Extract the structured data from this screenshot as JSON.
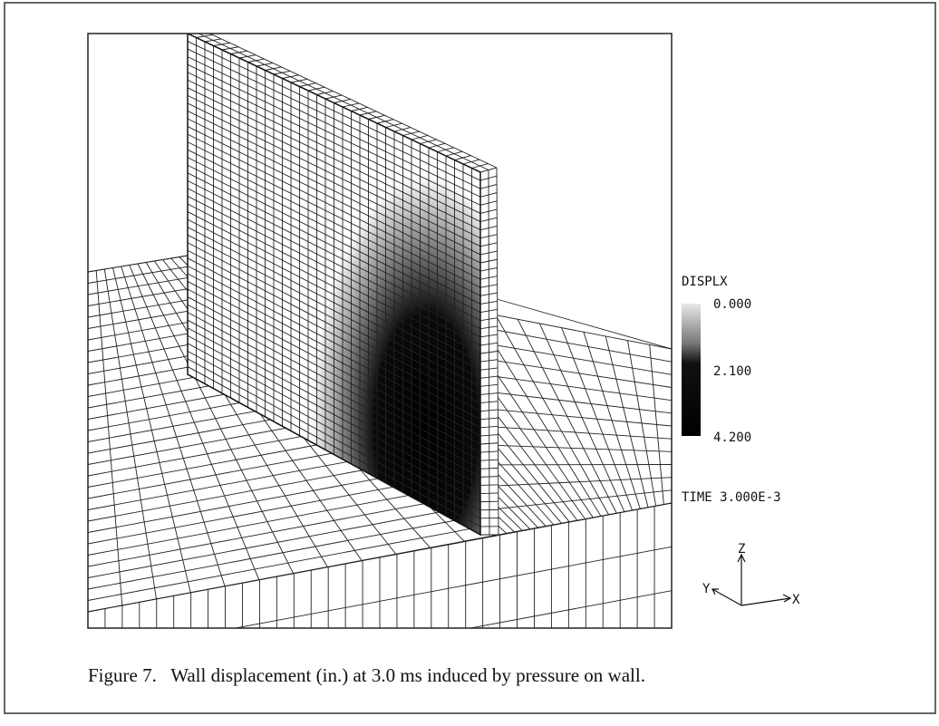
{
  "legend": {
    "title": "DISPLX",
    "ticks": [
      "0.000",
      "2.100",
      "4.200"
    ]
  },
  "time": "TIME 3.000E-3",
  "axes": {
    "z": "Z",
    "y": "Y",
    "x": "X"
  },
  "caption": "Figure 7.   Wall displacement (in.) at 3.0 ms induced by pressure on wall."
}
